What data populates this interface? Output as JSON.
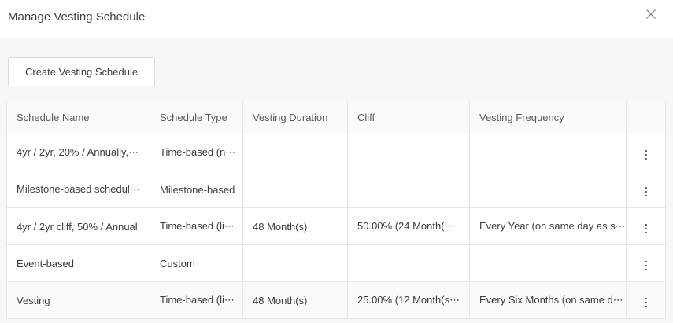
{
  "dialog": {
    "title": "Manage Vesting Schedule"
  },
  "icons": {
    "close": "x-icon",
    "row_menu": "kebab-vertical-icon"
  },
  "toolbar": {
    "create_button_label": "Create Vesting Schedule"
  },
  "table": {
    "columns": [
      "Schedule Name",
      "Schedule Type",
      "Vesting Duration",
      "Cliff",
      "Vesting Frequency",
      ""
    ],
    "rows": [
      {
        "name": "4yr / 2yr, 20% / Annually,⋯",
        "type": "Time-based (n⋯",
        "duration": "",
        "cliff": "",
        "frequency": ""
      },
      {
        "name": "Milestone-based schedul⋯",
        "type": "Milestone-based",
        "duration": "",
        "cliff": "",
        "frequency": ""
      },
      {
        "name": "4yr / 2yr cliff, 50% / Annual",
        "type": "Time-based (li⋯",
        "duration": "48 Month(s)",
        "cliff": "50.00% (24 Month(⋯",
        "frequency": "Every Year (on same day as s⋯"
      },
      {
        "name": "Event-based",
        "type": "Custom",
        "duration": "",
        "cliff": "",
        "frequency": ""
      },
      {
        "name": "Vesting",
        "type": "Time-based (li⋯",
        "duration": "48 Month(s)",
        "cliff": "25.00% (12 Month(s⋯",
        "frequency": "Every Six Months (on same d⋯"
      }
    ]
  },
  "colors": {
    "background": "#f7f7f7",
    "surface": "#ffffff",
    "border": "#e7e7e7",
    "text_primary": "#3c3c3c",
    "text_secondary": "#595959"
  }
}
